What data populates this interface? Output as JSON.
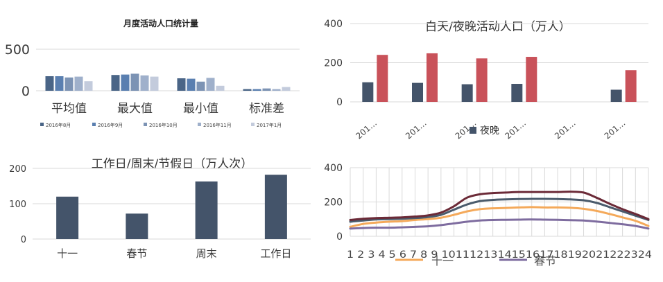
{
  "colors": {
    "grid": "#d9d9d9",
    "bar_dark": "#44546a",
    "bar_red": "#c9525a",
    "text": "#3a3a3a",
    "monthly": [
      "#4a6587",
      "#5a7fb0",
      "#7c93b4",
      "#9fb0cb",
      "#c3cbdc"
    ],
    "lines": [
      "#f4a95a",
      "#7e6c9f",
      "#4a5b6c",
      "#6b2a37"
    ]
  },
  "chart_data": [
    {
      "type": "bar",
      "title": "月度活动人口统计量",
      "categories": [
        "平均值",
        "最大值",
        "最小值",
        "标准差"
      ],
      "yticks": [
        0,
        500
      ],
      "ylim": [
        0,
        500
      ],
      "legend_position": "bottom",
      "series": [
        {
          "name": "2016年8月",
          "values": [
            175,
            190,
            150,
            20
          ]
        },
        {
          "name": "2016年9月",
          "values": [
            175,
            195,
            145,
            20
          ]
        },
        {
          "name": "2016年10月",
          "values": [
            160,
            205,
            110,
            28
          ]
        },
        {
          "name": "2016年11月",
          "values": [
            170,
            185,
            155,
            20
          ]
        },
        {
          "name": "2017年1月",
          "values": [
            115,
            170,
            60,
            45
          ]
        }
      ]
    },
    {
      "type": "bar",
      "title": "白天/夜晚活动人口（万人）",
      "categories": [
        "201…",
        "201…",
        "201…",
        "201…",
        "201…",
        "201…"
      ],
      "yticks": [
        0,
        200,
        400
      ],
      "ylim": [
        0,
        400
      ],
      "legend_entry": "夜晚",
      "series": [
        {
          "values": [
            100,
            97,
            90,
            92,
            0,
            62
          ]
        },
        {
          "values": [
            240,
            248,
            222,
            230,
            0,
            162
          ]
        }
      ]
    },
    {
      "type": "bar",
      "title": "工作日/周末/节假日（万人次）",
      "categories": [
        "十一",
        "春节",
        "周末",
        "工作日"
      ],
      "yticks": [
        0,
        100,
        200
      ],
      "ylim": [
        0,
        200
      ],
      "values": [
        120,
        72,
        163,
        182
      ]
    },
    {
      "type": "line",
      "x": [
        1,
        2,
        3,
        4,
        5,
        6,
        7,
        8,
        9,
        10,
        11,
        12,
        13,
        14,
        15,
        16,
        17,
        18,
        19,
        20,
        21,
        22,
        23,
        24
      ],
      "xtick_text": "1 2 3 4 5 6 7 8 9 101112131415161718192021222324",
      "yticks": [
        0,
        200,
        400
      ],
      "ylim": [
        0,
        400
      ],
      "legend_entries": [
        "十一",
        "春节"
      ],
      "series": [
        {
          "name": "十一",
          "values": [
            55,
            72,
            80,
            85,
            88,
            95,
            100,
            108,
            125,
            145,
            158,
            163,
            165,
            168,
            170,
            168,
            168,
            166,
            160,
            148,
            130,
            110,
            90,
            60
          ]
        },
        {
          "name": "春节",
          "values": [
            45,
            48,
            50,
            50,
            52,
            55,
            58,
            65,
            75,
            85,
            92,
            95,
            96,
            97,
            98,
            97,
            96,
            94,
            92,
            86,
            78,
            70,
            60,
            45
          ]
        },
        {
          "name": "",
          "values": [
            85,
            92,
            98,
            100,
            102,
            106,
            112,
            125,
            155,
            185,
            205,
            212,
            215,
            217,
            218,
            218,
            217,
            215,
            210,
            195,
            170,
            145,
            120,
            95
          ]
        },
        {
          "name": "",
          "values": [
            95,
            102,
            106,
            108,
            110,
            115,
            122,
            138,
            175,
            225,
            245,
            252,
            255,
            258,
            258,
            258,
            258,
            260,
            255,
            225,
            190,
            158,
            130,
            100
          ]
        }
      ]
    }
  ]
}
